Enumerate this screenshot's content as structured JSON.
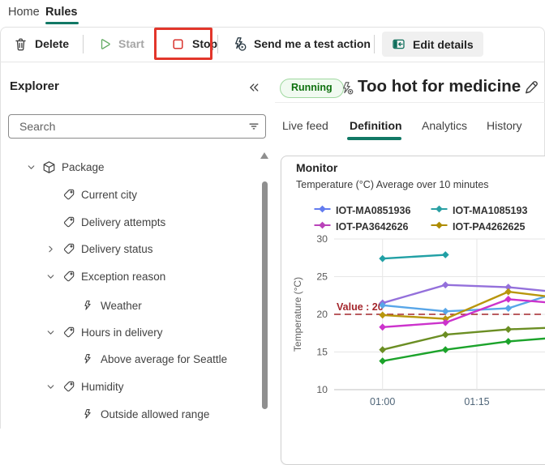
{
  "nav": {
    "items": [
      {
        "label": "Home",
        "active": false
      },
      {
        "label": "Rules",
        "active": true
      }
    ]
  },
  "toolbar": {
    "delete_label": "Delete",
    "start_label": "Start",
    "stop_label": "Stop",
    "test_action_label": "Send me a test action",
    "edit_details_label": "Edit details",
    "highlight_color": "#e2362b"
  },
  "explorer": {
    "title": "Explorer",
    "search_placeholder": "Search",
    "tree": [
      {
        "label": "Package",
        "level": 0,
        "icon": "package",
        "expand": "down"
      },
      {
        "label": "Current city",
        "level": 1,
        "icon": "tag",
        "expand": "none"
      },
      {
        "label": "Delivery attempts",
        "level": 1,
        "icon": "tag",
        "expand": "none"
      },
      {
        "label": "Delivery status",
        "level": 1,
        "icon": "tag",
        "expand": "right"
      },
      {
        "label": "Exception reason",
        "level": 1,
        "icon": "tag",
        "expand": "down"
      },
      {
        "label": "Weather",
        "level": 2,
        "icon": "flash",
        "expand": "none"
      },
      {
        "label": "Hours in delivery",
        "level": 1,
        "icon": "tag",
        "expand": "down"
      },
      {
        "label": "Above average for Seattle",
        "level": 2,
        "icon": "flash",
        "expand": "none"
      },
      {
        "label": "Humidity",
        "level": 1,
        "icon": "tag",
        "expand": "down"
      },
      {
        "label": "Outside allowed range",
        "level": 2,
        "icon": "flash",
        "expand": "none"
      }
    ]
  },
  "rule": {
    "status": "Running",
    "title": "Too hot for medicine",
    "tabs": [
      {
        "label": "Live feed",
        "active": false
      },
      {
        "label": "Definition",
        "active": true
      },
      {
        "label": "Analytics",
        "active": false
      },
      {
        "label": "History",
        "active": false
      }
    ]
  },
  "monitor": {
    "title": "Monitor",
    "subtitle": "Temperature (°C) Average over 10 minutes"
  },
  "chart_data": {
    "type": "line",
    "title": "Temperature (°C) Average over 10 minutes",
    "ylabel": "Temperature (°C)",
    "ylim": [
      10,
      30
    ],
    "yticks": [
      10,
      15,
      20,
      25,
      30
    ],
    "xticks": [
      {
        "minute": 60,
        "label": "01:00"
      },
      {
        "minute": 75,
        "label": "01:15"
      }
    ],
    "grid": true,
    "threshold": {
      "value": 20,
      "label": "Value : 20",
      "color": "#a4262c"
    },
    "legend_position": "top",
    "legend": [
      {
        "name": "IOT-MA0851936",
        "color": "#637cef"
      },
      {
        "name": "IOT-MA1085193",
        "color": "#2aa0a4"
      },
      {
        "name": "IOT-PA3642626",
        "color": "#ba43ba"
      },
      {
        "name": "IOT-PA4262625",
        "color": "#ae8c00"
      }
    ],
    "series": [
      {
        "name": "",
        "color": "#9470db",
        "points": [
          [
            60,
            21.5
          ],
          [
            70,
            23.9
          ],
          [
            80,
            23.6
          ]
        ],
        "edge": [
          86,
          23.1
        ]
      },
      {
        "name": "IOT-MA0851936",
        "color": "#58a6e8",
        "points": [
          [
            60,
            21.2
          ],
          [
            70,
            20.4
          ],
          [
            80,
            20.8
          ]
        ],
        "edge": [
          86,
          22.4
        ]
      },
      {
        "name": "IOT-PA4262625",
        "color": "#b8960c",
        "points": [
          [
            60,
            19.9
          ],
          [
            70,
            19.4
          ],
          [
            80,
            23.0
          ]
        ],
        "edge": [
          86,
          22.4
        ]
      },
      {
        "name": "IOT-PA3642626",
        "color": "#cc33cc",
        "points": [
          [
            60,
            18.3
          ],
          [
            70,
            18.9
          ],
          [
            80,
            22.0
          ]
        ],
        "edge": [
          86,
          21.6
        ]
      },
      {
        "name": "",
        "color": "#6b8e23",
        "points": [
          [
            60,
            15.3
          ],
          [
            70,
            17.3
          ],
          [
            80,
            18.0
          ]
        ],
        "edge": [
          86,
          18.2
        ]
      },
      {
        "name": "",
        "color": "#1ca32b",
        "points": [
          [
            60,
            13.8
          ],
          [
            70,
            15.3
          ],
          [
            80,
            16.4
          ]
        ],
        "edge": [
          86,
          16.8
        ]
      },
      {
        "name": "IOT-MA1085193",
        "color": "#21a0a5",
        "points": [
          [
            60,
            27.4
          ],
          [
            70,
            27.9
          ]
        ]
      }
    ]
  }
}
